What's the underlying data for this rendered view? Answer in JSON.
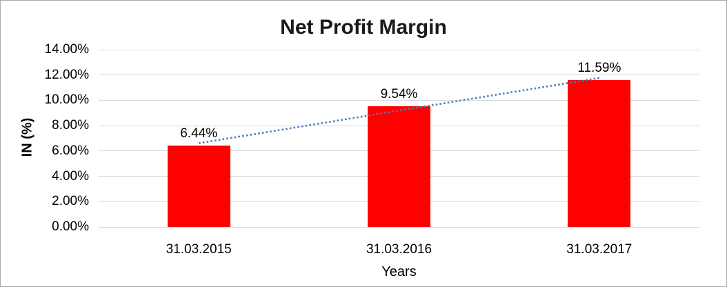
{
  "chart_data": {
    "type": "bar",
    "title": "Net Profit Margin",
    "xlabel": "Years",
    "ylabel": "IN (%)",
    "categories": [
      "31.03.2015",
      "31.03.2016",
      "31.03.2017"
    ],
    "series": [
      {
        "name": "Net Profit Margin",
        "values": [
          6.44,
          9.54,
          11.59
        ],
        "data_labels": [
          "6.44%",
          "9.54%",
          "11.59%"
        ],
        "color": "#ff0000"
      }
    ],
    "ylim": [
      0,
      14
    ],
    "y_ticks": [
      {
        "value": 0,
        "label": "0.00%"
      },
      {
        "value": 2,
        "label": "2.00%"
      },
      {
        "value": 4,
        "label": "4.00%"
      },
      {
        "value": 6,
        "label": "6.00%"
      },
      {
        "value": 8,
        "label": "8.00%"
      },
      {
        "value": 10,
        "label": "10.00%"
      },
      {
        "value": 12,
        "label": "12.00%"
      },
      {
        "value": 14,
        "label": "14.00%"
      }
    ],
    "grid": true,
    "legend_position": "none",
    "trendline": {
      "type": "linear",
      "style": "dotted",
      "color": "#4a7ebb"
    }
  },
  "colors": {
    "bar": "#ff0000",
    "trendline": "#4a7ebb",
    "gridline": "#d9d9d9",
    "frame_border": "#a9a9a9",
    "text": "#000000",
    "background": "#ffffff"
  }
}
